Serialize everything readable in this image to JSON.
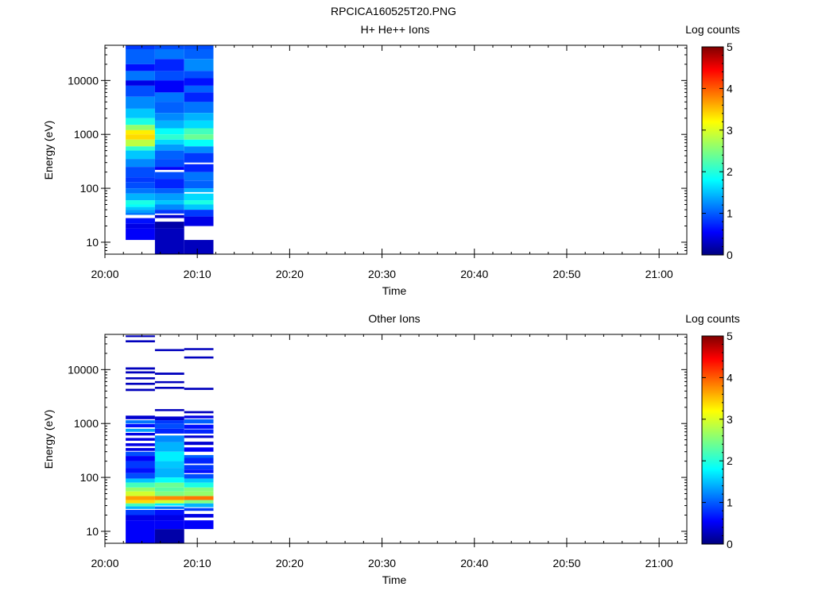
{
  "figure": {
    "title": "RPCICA160525T20.PNG"
  },
  "chart_data": [
    {
      "type": "heatmap",
      "title": "H+ He++ Ions",
      "xlabel": "Time",
      "ylabel": "Energy (eV)",
      "y_scale": "log",
      "ylim": [
        6,
        45000
      ],
      "xlim": [
        "20:00",
        "21:03"
      ],
      "x_ticks": [
        "20:00",
        "20:10",
        "20:20",
        "20:30",
        "20:40",
        "20:50",
        "21:00"
      ],
      "y_ticks": [
        "10",
        "100",
        "1000",
        "10000"
      ],
      "colorbar": {
        "label": "Log counts",
        "range": [
          0,
          5
        ],
        "ticks": [
          "0",
          "1",
          "2",
          "3",
          "4",
          "5"
        ]
      },
      "columns": [
        {
          "start": "20:02:15",
          "end": "20:05:25",
          "bands": [
            [
              38000,
              45000,
              0.9
            ],
            [
              20000,
              38000,
              1.1
            ],
            [
              15000,
              20000,
              0.7
            ],
            [
              10000,
              15000,
              1.2
            ],
            [
              8000,
              10000,
              0.5
            ],
            [
              5000,
              8000,
              1.0
            ],
            [
              3000,
              5000,
              1.3
            ],
            [
              2000,
              3000,
              1.6
            ],
            [
              1500,
              2000,
              2.0
            ],
            [
              1200,
              1500,
              2.6
            ],
            [
              1000,
              1200,
              3.2
            ],
            [
              800,
              1000,
              3.3
            ],
            [
              600,
              800,
              2.8
            ],
            [
              500,
              600,
              2.1
            ],
            [
              350,
              500,
              1.6
            ],
            [
              250,
              350,
              1.3
            ],
            [
              160,
              250,
              1.0
            ],
            [
              130,
              160,
              0.9
            ],
            [
              100,
              130,
              1.0
            ],
            [
              80,
              100,
              1.2
            ],
            [
              60,
              80,
              1.5
            ],
            [
              50,
              60,
              2.0
            ],
            [
              45,
              50,
              1.9
            ],
            [
              40,
              45,
              1.6
            ],
            [
              35,
              40,
              1.4
            ],
            [
              32,
              35,
              1.2
            ],
            [
              22,
              28,
              0.7
            ],
            [
              18,
              22,
              0.5
            ],
            [
              11,
              18,
              0.6
            ]
          ]
        },
        {
          "start": "20:05:25",
          "end": "20:08:35",
          "bands": [
            [
              38000,
              45000,
              1.0
            ],
            [
              25000,
              38000,
              1.2
            ],
            [
              15000,
              25000,
              0.8
            ],
            [
              10000,
              15000,
              1.0
            ],
            [
              6000,
              10000,
              0.6
            ],
            [
              4000,
              6000,
              1.2
            ],
            [
              2500,
              4000,
              1.1
            ],
            [
              1800,
              2500,
              1.3
            ],
            [
              1300,
              1800,
              1.5
            ],
            [
              1000,
              1300,
              1.9
            ],
            [
              800,
              1000,
              2.1
            ],
            [
              650,
              800,
              1.7
            ],
            [
              500,
              650,
              1.4
            ],
            [
              350,
              500,
              1.1
            ],
            [
              250,
              350,
              1.0
            ],
            [
              220,
              250,
              0.6
            ],
            [
              150,
              200,
              1.0
            ],
            [
              100,
              150,
              0.8
            ],
            [
              80,
              100,
              1.1
            ],
            [
              60,
              80,
              1.4
            ],
            [
              50,
              60,
              1.6
            ],
            [
              40,
              50,
              1.3
            ],
            [
              34,
              40,
              0.9
            ],
            [
              28,
              32,
              0.4
            ],
            [
              18,
              24,
              0.2
            ],
            [
              6,
              18,
              0.3
            ]
          ]
        },
        {
          "start": "20:08:35",
          "end": "20:11:45",
          "bands": [
            [
              38000,
              45000,
              1.0
            ],
            [
              25000,
              38000,
              1.1
            ],
            [
              15000,
              25000,
              1.3
            ],
            [
              11000,
              15000,
              1.0
            ],
            [
              8000,
              11000,
              0.7
            ],
            [
              6000,
              8000,
              1.1
            ],
            [
              4000,
              6000,
              0.8
            ],
            [
              2500,
              4000,
              1.2
            ],
            [
              1800,
              2500,
              1.5
            ],
            [
              1300,
              1800,
              1.7
            ],
            [
              1000,
              1300,
              2.2
            ],
            [
              800,
              1000,
              2.4
            ],
            [
              600,
              800,
              1.9
            ],
            [
              450,
              600,
              1.3
            ],
            [
              300,
              450,
              0.9
            ],
            [
              200,
              280,
              0.8
            ],
            [
              140,
              200,
              1.2
            ],
            [
              100,
              140,
              1.1
            ],
            [
              85,
              100,
              1.5
            ],
            [
              60,
              80,
              1.7
            ],
            [
              50,
              60,
              2.0
            ],
            [
              40,
              50,
              1.6
            ],
            [
              30,
              40,
              0.9
            ],
            [
              20,
              30,
              0.5
            ],
            [
              6,
              11,
              0.3
            ]
          ]
        }
      ]
    },
    {
      "type": "heatmap",
      "title": "Other Ions",
      "xlabel": "Time",
      "ylabel": "Energy (eV)",
      "y_scale": "log",
      "ylim": [
        6,
        45000
      ],
      "xlim": [
        "20:00",
        "21:03"
      ],
      "x_ticks": [
        "20:00",
        "20:10",
        "20:20",
        "20:30",
        "20:40",
        "20:50",
        "21:00"
      ],
      "y_ticks": [
        "10",
        "100",
        "1000",
        "10000"
      ],
      "colorbar": {
        "label": "Log counts",
        "range": [
          0,
          5
        ],
        "ticks": [
          "0",
          "1",
          "2",
          "3",
          "4",
          "5"
        ]
      },
      "columns": [
        {
          "start": "20:02:15",
          "end": "20:05:25",
          "bands": [
            [
              40000,
              43000,
              0.3
            ],
            [
              32000,
              35000,
              0.3
            ],
            [
              10000,
              11000,
              0.3
            ],
            [
              8500,
              9300,
              0.3
            ],
            [
              6600,
              7200,
              0.3
            ],
            [
              5200,
              5700,
              0.3
            ],
            [
              4000,
              4400,
              0.3
            ],
            [
              1200,
              1400,
              0.4
            ],
            [
              1000,
              1150,
              1.2
            ],
            [
              850,
              980,
              0.7
            ],
            [
              700,
              800,
              1.4
            ],
            [
              600,
              670,
              0.5
            ],
            [
              480,
              540,
              0.5
            ],
            [
              380,
              430,
              0.5
            ],
            [
              310,
              350,
              0.5
            ],
            [
              250,
              300,
              1.0
            ],
            [
              200,
              250,
              0.6
            ],
            [
              150,
              200,
              0.9
            ],
            [
              120,
              150,
              0.7
            ],
            [
              95,
              120,
              1.0
            ],
            [
              80,
              95,
              1.6
            ],
            [
              65,
              80,
              2.2
            ],
            [
              55,
              65,
              2.6
            ],
            [
              45,
              55,
              2.9
            ],
            [
              38,
              45,
              3.6
            ],
            [
              33,
              38,
              3.3
            ],
            [
              29,
              33,
              2.2
            ],
            [
              26,
              29,
              1.5
            ],
            [
              20,
              25,
              0.9
            ],
            [
              16,
              20,
              0.5
            ],
            [
              6,
              16,
              0.6
            ]
          ]
        },
        {
          "start": "20:05:25",
          "end": "20:08:35",
          "bands": [
            [
              22000,
              24000,
              0.3
            ],
            [
              8000,
              8800,
              0.3
            ],
            [
              5600,
              6100,
              0.3
            ],
            [
              4400,
              4800,
              0.3
            ],
            [
              1700,
              1850,
              0.3
            ],
            [
              1150,
              1350,
              0.4
            ],
            [
              1000,
              1150,
              0.9
            ],
            [
              800,
              1000,
              1.0
            ],
            [
              650,
              800,
              0.8
            ],
            [
              450,
              600,
              1.3
            ],
            [
              300,
              450,
              1.5
            ],
            [
              200,
              300,
              1.8
            ],
            [
              150,
              200,
              1.6
            ],
            [
              100,
              150,
              1.5
            ],
            [
              80,
              100,
              1.9
            ],
            [
              65,
              80,
              2.4
            ],
            [
              55,
              65,
              2.3
            ],
            [
              45,
              55,
              2.5
            ],
            [
              38,
              45,
              3.7
            ],
            [
              33,
              38,
              2.9
            ],
            [
              30,
              33,
              1.8
            ],
            [
              26,
              29,
              1.2
            ],
            [
              20,
              25,
              0.7
            ],
            [
              16,
              20,
              0.5
            ],
            [
              11,
              16,
              0.6
            ],
            [
              6,
              11,
              0.2
            ]
          ]
        },
        {
          "start": "20:08:35",
          "end": "20:11:45",
          "bands": [
            [
              23000,
              25000,
              0.3
            ],
            [
              16000,
              17500,
              0.3
            ],
            [
              4200,
              4600,
              0.3
            ],
            [
              1550,
              1700,
              0.3
            ],
            [
              1250,
              1400,
              0.5
            ],
            [
              1000,
              1200,
              1.1
            ],
            [
              800,
              950,
              0.7
            ],
            [
              650,
              780,
              0.8
            ],
            [
              540,
              600,
              0.4
            ],
            [
              400,
              460,
              0.4
            ],
            [
              300,
              360,
              0.6
            ],
            [
              230,
              260,
              1.1
            ],
            [
              180,
              230,
              0.8
            ],
            [
              140,
              170,
              0.9
            ],
            [
              120,
              140,
              0.7
            ],
            [
              95,
              115,
              1.0
            ],
            [
              80,
              95,
              1.6
            ],
            [
              65,
              80,
              2.0
            ],
            [
              55,
              65,
              2.5
            ],
            [
              45,
              55,
              2.6
            ],
            [
              38,
              45,
              3.8
            ],
            [
              33,
              38,
              2.5
            ],
            [
              28,
              33,
              1.5
            ],
            [
              24,
              27,
              0.9
            ],
            [
              18,
              21,
              0.5
            ],
            [
              11,
              16,
              0.6
            ]
          ]
        }
      ]
    }
  ]
}
